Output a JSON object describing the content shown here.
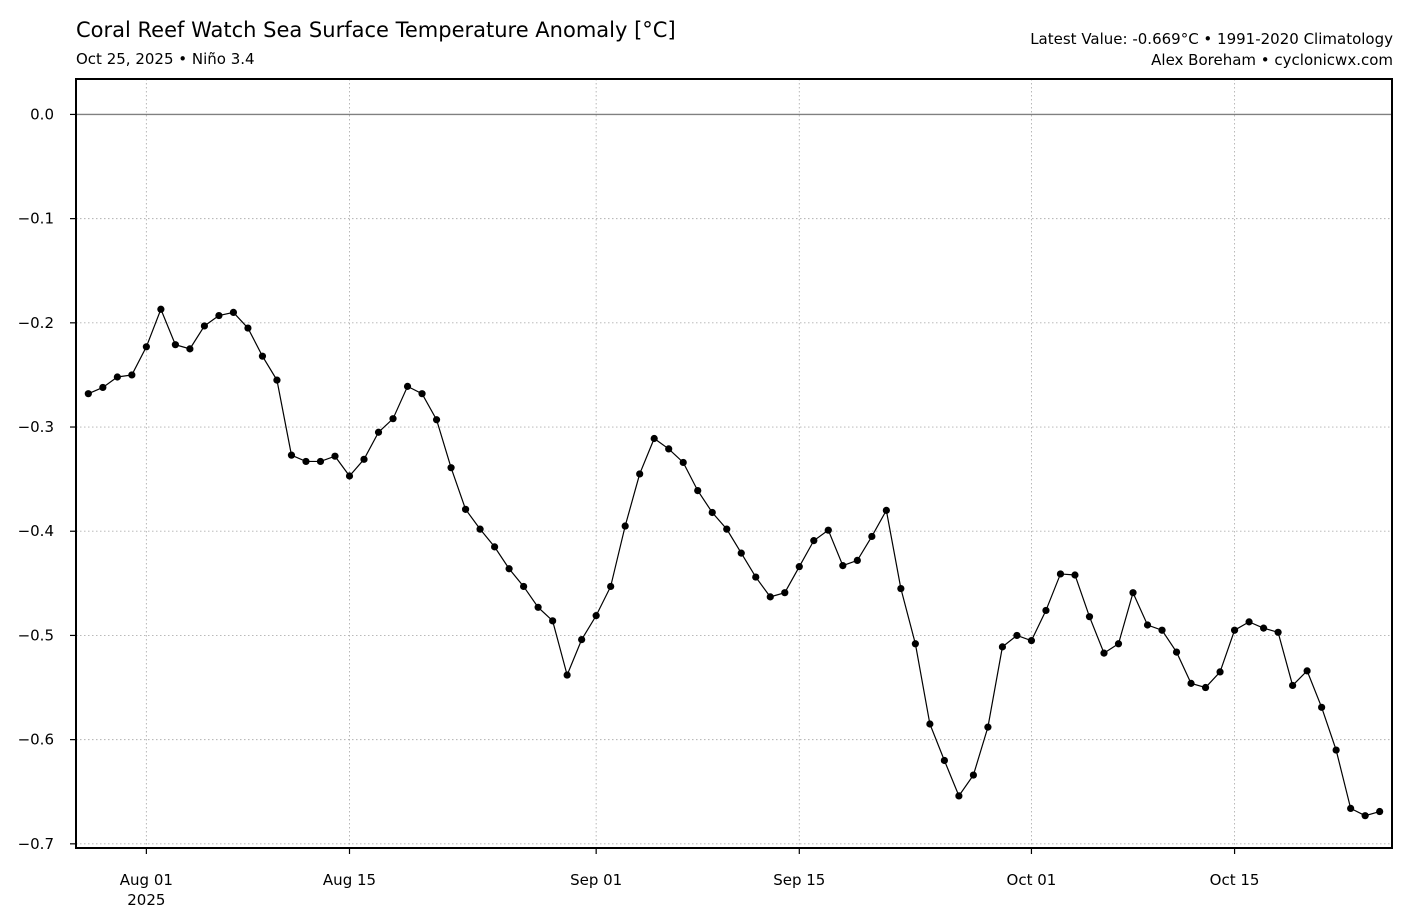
{
  "header": {
    "title": "Coral Reef Watch Sea Surface Temperature Anomaly [°C]",
    "subtitle": "Oct 25, 2025 • Niño 3.4",
    "latest": "Latest Value: -0.669°C • 1991-2020 Climatology",
    "credit": "Alex Boreham • cyclonicwx.com"
  },
  "colors": {
    "line": "#000000",
    "zero_line": "#808080",
    "grid": "#b0b0b0"
  },
  "chart_data": {
    "type": "line",
    "title": "Coral Reef Watch Sea Surface Temperature Anomaly [°C]",
    "xlabel": "",
    "ylabel": "",
    "x_start": "2025-07-28",
    "x_end": "2025-10-25",
    "xlim": [
      "2025-07-27",
      "2025-10-26"
    ],
    "ylim": [
      -0.7,
      0.0
    ],
    "grid": true,
    "reference_line": 0.0,
    "x_ticks": [
      {
        "date": "2025-08-01",
        "label": "Aug 01",
        "sublabel": "2025"
      },
      {
        "date": "2025-08-15",
        "label": "Aug 15",
        "sublabel": ""
      },
      {
        "date": "2025-09-01",
        "label": "Sep 01",
        "sublabel": ""
      },
      {
        "date": "2025-09-15",
        "label": "Sep 15",
        "sublabel": ""
      },
      {
        "date": "2025-10-01",
        "label": "Oct 01",
        "sublabel": ""
      },
      {
        "date": "2025-10-15",
        "label": "Oct 15",
        "sublabel": ""
      }
    ],
    "y_ticks": [
      {
        "value": 0.0,
        "label": "0.0"
      },
      {
        "value": -0.1,
        "label": "−0.1"
      },
      {
        "value": -0.2,
        "label": "−0.2"
      },
      {
        "value": -0.3,
        "label": "−0.3"
      },
      {
        "value": -0.4,
        "label": "−0.4"
      },
      {
        "value": -0.5,
        "label": "−0.5"
      },
      {
        "value": -0.6,
        "label": "−0.6"
      },
      {
        "value": -0.7,
        "label": "−0.7"
      }
    ],
    "series": [
      {
        "values": [
          -0.268,
          -0.262,
          -0.252,
          -0.25,
          -0.223,
          -0.187,
          -0.221,
          -0.225,
          -0.203,
          -0.193,
          -0.19,
          -0.205,
          -0.232,
          -0.255,
          -0.327,
          -0.333,
          -0.333,
          -0.328,
          -0.347,
          -0.331,
          -0.305,
          -0.292,
          -0.261,
          -0.268,
          -0.293,
          -0.339,
          -0.379,
          -0.398,
          -0.415,
          -0.436,
          -0.453,
          -0.473,
          -0.486,
          -0.538,
          -0.504,
          -0.481,
          -0.453,
          -0.395,
          -0.345,
          -0.311,
          -0.321,
          -0.334,
          -0.361,
          -0.382,
          -0.398,
          -0.421,
          -0.444,
          -0.463,
          -0.459,
          -0.434,
          -0.409,
          -0.399,
          -0.433,
          -0.428,
          -0.405,
          -0.38,
          -0.455,
          -0.508,
          -0.585,
          -0.62,
          -0.654,
          -0.634,
          -0.588,
          -0.511,
          -0.5,
          -0.505,
          -0.476,
          -0.441,
          -0.442,
          -0.482,
          -0.517,
          -0.508,
          -0.459,
          -0.49,
          -0.495,
          -0.516,
          -0.546,
          -0.55,
          -0.535,
          -0.495,
          -0.487,
          -0.493,
          -0.497,
          -0.548,
          -0.534,
          -0.569,
          -0.61,
          -0.666,
          -0.673,
          -0.669
        ]
      }
    ]
  }
}
